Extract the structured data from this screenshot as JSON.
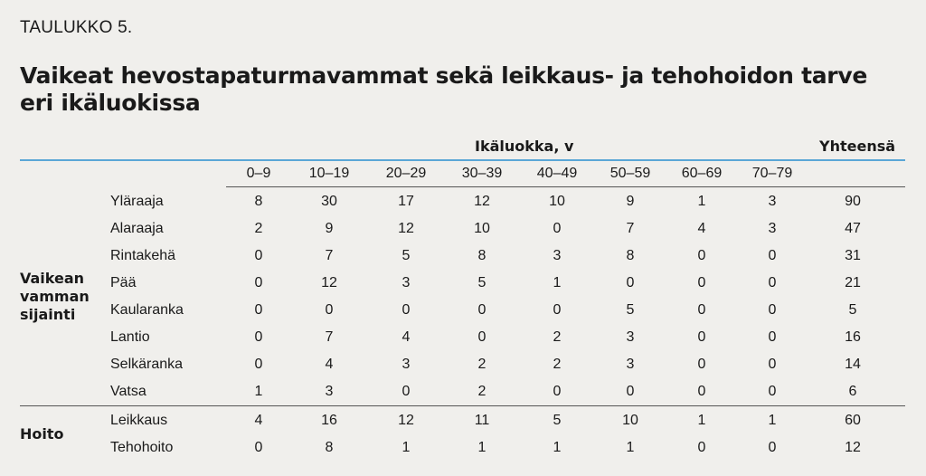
{
  "table_label": "TAULUKKO 5.",
  "title": "Vaikeat hevostapaturmavammat sekä leikkaus- ja tehohoidon tarve eri ikäluokissa",
  "header": {
    "age_group": "Ikäluokka, v",
    "total": "Yhteensä"
  },
  "columns": [
    "0–9",
    "10–19",
    "20–29",
    "30–39",
    "40–49",
    "50–59",
    "60–69",
    "70–79"
  ],
  "groups": [
    {
      "label_lines": [
        "Vaikean",
        "vamman",
        "sijainti"
      ],
      "rows": [
        {
          "label": "Yläraaja",
          "values": [
            "8",
            "30",
            "17",
            "12",
            "10",
            "9",
            "1",
            "3"
          ],
          "total": "90"
        },
        {
          "label": "Alaraaja",
          "values": [
            "2",
            "9",
            "12",
            "10",
            "0",
            "7",
            "4",
            "3"
          ],
          "total": "47"
        },
        {
          "label": "Rintakehä",
          "values": [
            "0",
            "7",
            "5",
            "8",
            "3",
            "8",
            "0",
            "0"
          ],
          "total": "31"
        },
        {
          "label": "Pää",
          "values": [
            "0",
            "12",
            "3",
            "5",
            "1",
            "0",
            "0",
            "0"
          ],
          "total": "21"
        },
        {
          "label": "Kaularanka",
          "values": [
            "0",
            "0",
            "0",
            "0",
            "0",
            "5",
            "0",
            "0"
          ],
          "total": "5"
        },
        {
          "label": "Lantio",
          "values": [
            "0",
            "7",
            "4",
            "0",
            "2",
            "3",
            "0",
            "0"
          ],
          "total": "16"
        },
        {
          "label": "Selkäranka",
          "values": [
            "0",
            "4",
            "3",
            "2",
            "2",
            "3",
            "0",
            "0"
          ],
          "total": "14"
        },
        {
          "label": "Vatsa",
          "values": [
            "1",
            "3",
            "0",
            "2",
            "0",
            "0",
            "0",
            "0"
          ],
          "total": "6"
        }
      ]
    },
    {
      "label_lines": [
        "Hoito"
      ],
      "rows": [
        {
          "label": "Leikkaus",
          "values": [
            "4",
            "16",
            "12",
            "11",
            "5",
            "10",
            "1",
            "1"
          ],
          "total": "60"
        },
        {
          "label": "Tehohoito",
          "values": [
            "0",
            "8",
            "1",
            "1",
            "1",
            "1",
            "0",
            "0"
          ],
          "total": "12"
        }
      ]
    }
  ]
}
